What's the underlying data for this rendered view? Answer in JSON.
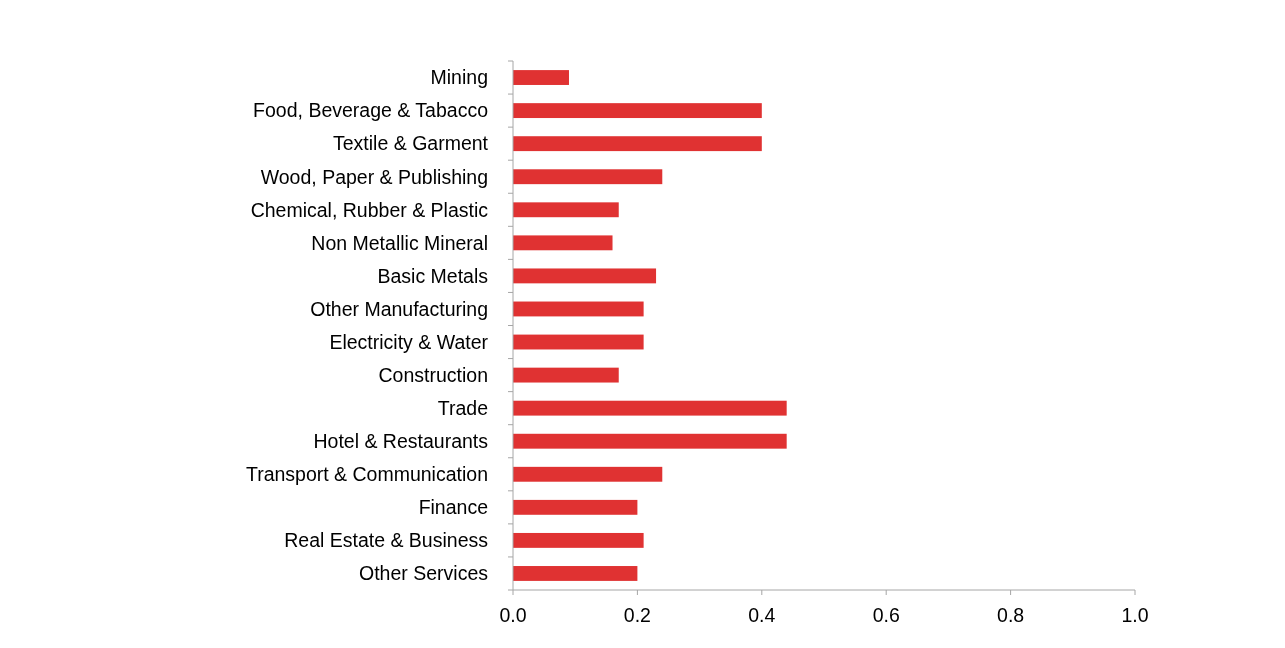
{
  "chart_data": {
    "type": "bar",
    "orientation": "horizontal",
    "categories": [
      "Mining",
      "Food, Beverage & Tabacco",
      "Textile & Garment",
      "Wood, Paper & Publishing",
      "Chemical, Rubber & Plastic",
      "Non Metallic Mineral",
      "Basic Metals",
      "Other Manufacturing",
      "Electricity & Water",
      "Construction",
      "Trade",
      "Hotel & Restaurants",
      "Transport & Communication",
      "Finance",
      "Real Estate & Business",
      "Other Services"
    ],
    "values": [
      0.09,
      0.4,
      0.4,
      0.24,
      0.17,
      0.16,
      0.23,
      0.21,
      0.21,
      0.17,
      0.44,
      0.44,
      0.24,
      0.2,
      0.21,
      0.2
    ],
    "color": "#e03232",
    "xlim": [
      0,
      1
    ],
    "xticks": [
      {
        "value": 0,
        "label": "0.0"
      },
      {
        "value": 0.2,
        "label": "0.2"
      },
      {
        "value": 0.4,
        "label": "0.4"
      },
      {
        "value": 0.6,
        "label": "0.6"
      },
      {
        "value": 0.8,
        "label": "0.8"
      },
      {
        "value": 1,
        "label": "1.0"
      }
    ],
    "grid": false
  }
}
